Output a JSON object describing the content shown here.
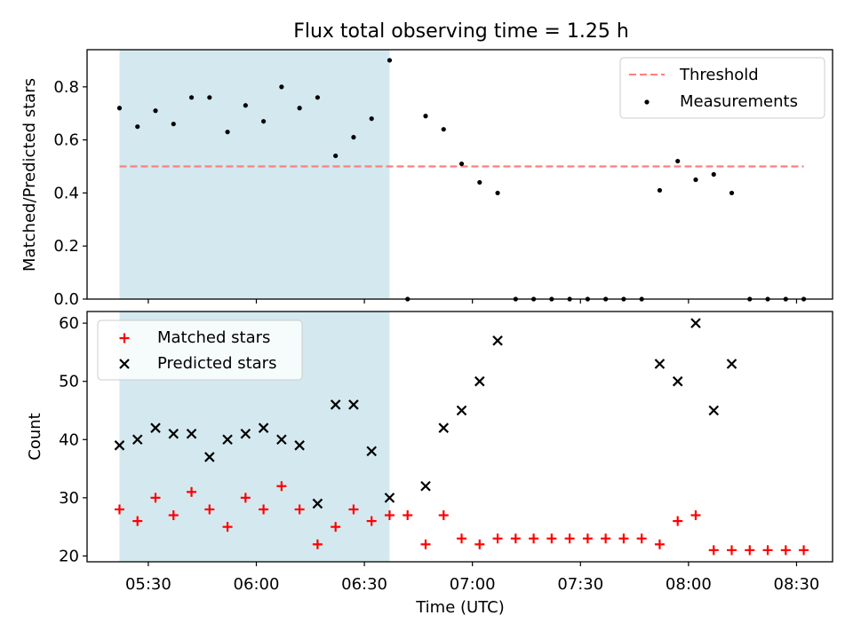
{
  "title": "Flux total observing time = 1.25 h",
  "colors": {
    "shade": "#d3e9ef",
    "threshold": "#ff7f7f",
    "measurements": "#000000",
    "matched": "#ff0000",
    "predicted": "#000000"
  },
  "chart_data": [
    {
      "type": "scatter",
      "ylabel": "Matched/Predicted stars",
      "ylim": [
        0,
        0.94
      ],
      "yticks": [
        0.0,
        0.2,
        0.4,
        0.6,
        0.8
      ],
      "ytick_labels": [
        "0.0",
        "0.2",
        "0.4",
        "0.6",
        "0.8"
      ],
      "xlim": [
        "05:13",
        "08:40"
      ],
      "shaded_span": [
        "05:22",
        "06:37"
      ],
      "legend": {
        "placement": "top-right",
        "entries": [
          "Threshold",
          "Measurements"
        ]
      },
      "threshold": {
        "name": "Threshold",
        "value": 0.5,
        "x": [
          "05:22",
          "08:32"
        ]
      },
      "series": [
        {
          "name": "Measurements",
          "x": [
            "05:22",
            "05:27",
            "05:32",
            "05:37",
            "05:42",
            "05:47",
            "05:52",
            "05:57",
            "06:02",
            "06:07",
            "06:12",
            "06:17",
            "06:22",
            "06:27",
            "06:32",
            "06:37",
            "06:42",
            "06:47",
            "06:52",
            "06:57",
            "07:02",
            "07:07",
            "07:12",
            "07:17",
            "07:22",
            "07:27",
            "07:32",
            "07:37",
            "07:42",
            "07:47",
            "07:52",
            "07:57",
            "08:02",
            "08:07",
            "08:12",
            "08:17",
            "08:22",
            "08:27",
            "08:32"
          ],
          "values": [
            0.72,
            0.65,
            0.71,
            0.66,
            0.76,
            0.76,
            0.63,
            0.73,
            0.67,
            0.8,
            0.72,
            0.76,
            0.54,
            0.61,
            0.68,
            0.9,
            0.0,
            0.69,
            0.64,
            0.51,
            0.44,
            0.4,
            0.0,
            0.0,
            0.0,
            0.0,
            0.0,
            0.0,
            0.0,
            0.0,
            0.41,
            0.52,
            0.45,
            0.47,
            0.4,
            0.0,
            0.0,
            0.0,
            0.0
          ]
        }
      ]
    },
    {
      "type": "scatter",
      "xlabel": "Time (UTC)",
      "ylabel": "Count",
      "ylim": [
        19,
        62
      ],
      "yticks": [
        20,
        30,
        40,
        50,
        60
      ],
      "ytick_labels": [
        "20",
        "30",
        "40",
        "50",
        "60"
      ],
      "xlim": [
        "05:13",
        "08:40"
      ],
      "xticks": [
        "05:30",
        "06:00",
        "06:30",
        "07:00",
        "07:30",
        "08:00",
        "08:30"
      ],
      "shaded_span": [
        "05:22",
        "06:37"
      ],
      "legend": {
        "placement": "top-left",
        "entries": [
          "Matched stars",
          "Predicted stars"
        ]
      },
      "series": [
        {
          "name": "Matched stars",
          "marker": "+",
          "x": [
            "05:22",
            "05:27",
            "05:32",
            "05:37",
            "05:42",
            "05:47",
            "05:52",
            "05:57",
            "06:02",
            "06:07",
            "06:12",
            "06:17",
            "06:22",
            "06:27",
            "06:32",
            "06:37",
            "06:42",
            "06:47",
            "06:52",
            "06:57",
            "07:02",
            "07:07",
            "07:12",
            "07:17",
            "07:22",
            "07:27",
            "07:32",
            "07:37",
            "07:42",
            "07:47",
            "07:52",
            "07:57",
            "08:02",
            "08:07",
            "08:12",
            "08:17",
            "08:22",
            "08:27",
            "08:32"
          ],
          "values": [
            28,
            26,
            30,
            27,
            31,
            28,
            25,
            30,
            28,
            32,
            28,
            22,
            25,
            28,
            26,
            27,
            27,
            22,
            27,
            23,
            22,
            23,
            23,
            23,
            23,
            23,
            23,
            23,
            23,
            23,
            22,
            26,
            27,
            21,
            21,
            21,
            21,
            21,
            21
          ]
        },
        {
          "name": "Predicted stars",
          "marker": "x",
          "x": [
            "05:22",
            "05:27",
            "05:32",
            "05:37",
            "05:42",
            "05:47",
            "05:52",
            "05:57",
            "06:02",
            "06:07",
            "06:12",
            "06:17",
            "06:22",
            "06:27",
            "06:32",
            "06:37",
            "06:47",
            "06:52",
            "06:57",
            "07:02",
            "07:07",
            "07:52",
            "07:57",
            "08:02",
            "08:07",
            "08:12"
          ],
          "values": [
            39,
            40,
            42,
            41,
            41,
            37,
            40,
            41,
            42,
            40,
            39,
            29,
            46,
            46,
            38,
            30,
            32,
            42,
            45,
            50,
            57,
            53,
            50,
            60,
            45,
            53
          ]
        }
      ]
    }
  ]
}
